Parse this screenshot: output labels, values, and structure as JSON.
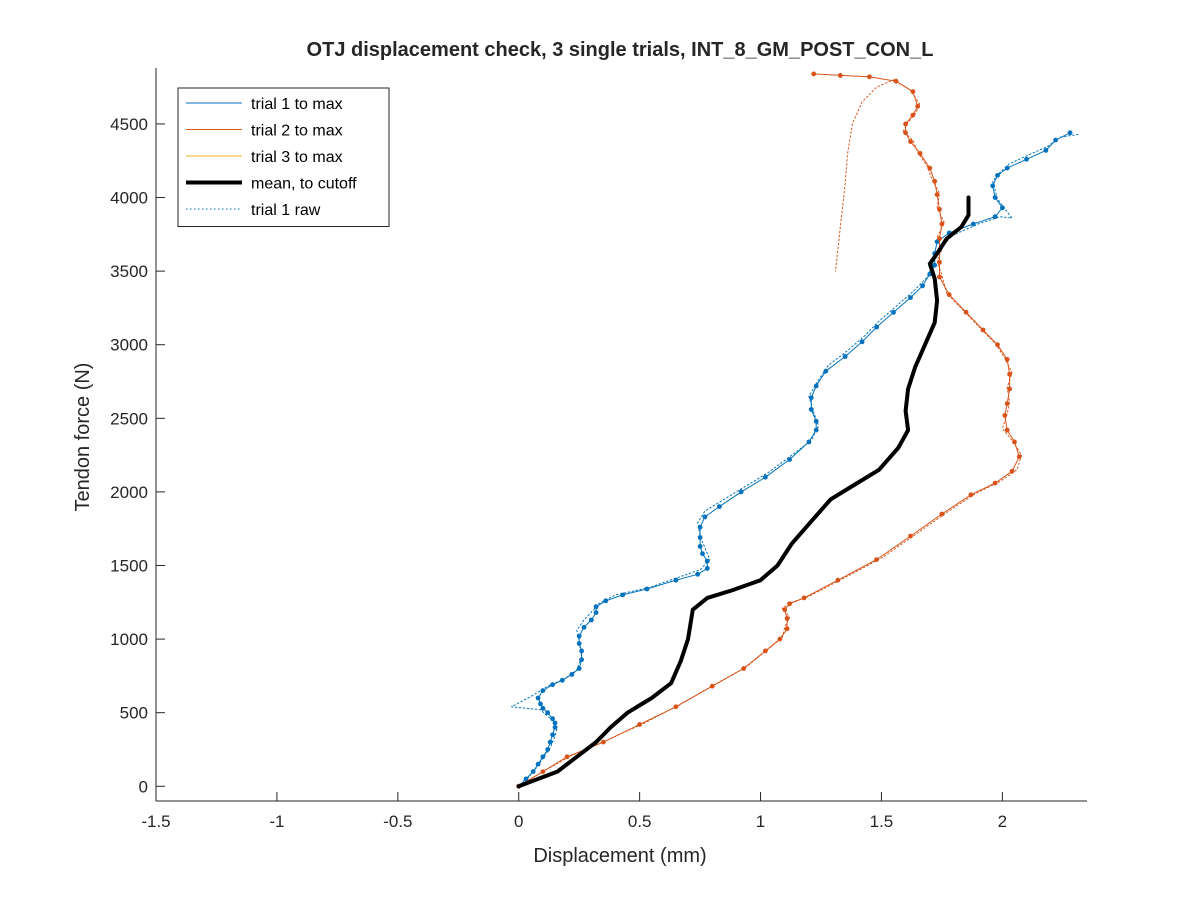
{
  "chart_data": {
    "type": "line",
    "title": "OTJ displacement check, 3 single trials, INT_8_GM_POST_CON_L",
    "xlabel": "Displacement (mm)",
    "ylabel": "Tendon force (N)",
    "xlim": [
      -1.5,
      2.35
    ],
    "ylim": [
      -100,
      4880
    ],
    "xticks": [
      -1.5,
      -1,
      -0.5,
      0,
      0.5,
      1,
      1.5,
      2
    ],
    "xtick_labels": [
      "-1.5",
      "-1",
      "-0.5",
      "0",
      "0.5",
      "1",
      "1.5",
      "2"
    ],
    "yticks": [
      0,
      500,
      1000,
      1500,
      2000,
      2500,
      3000,
      3500,
      4000,
      4500
    ],
    "ytick_labels": [
      "0",
      "500",
      "1000",
      "1500",
      "2000",
      "2500",
      "3000",
      "3500",
      "4000",
      "4500"
    ],
    "grid": false,
    "legend_position": "top-left",
    "colors": {
      "trial1": "#0072BD",
      "trial2": "#D95319",
      "trial3": "#EDB120",
      "mean": "#000000"
    },
    "series": [
      {
        "name": "trial 1 to max",
        "color": "#0072BD",
        "style": "solid-thin",
        "x": [
          0.0,
          0.03,
          0.06,
          0.08,
          0.1,
          0.12,
          0.13,
          0.14,
          0.15,
          0.15,
          0.14,
          0.12,
          0.1,
          0.09,
          0.08,
          0.1,
          0.14,
          0.18,
          0.22,
          0.25,
          0.26,
          0.26,
          0.25,
          0.25,
          0.27,
          0.3,
          0.32,
          0.32,
          0.36,
          0.43,
          0.53,
          0.65,
          0.74,
          0.78,
          0.78,
          0.76,
          0.75,
          0.75,
          0.75,
          0.77,
          0.83,
          0.92,
          1.02,
          1.12,
          1.2,
          1.23,
          1.23,
          1.21,
          1.21,
          1.23,
          1.27,
          1.35,
          1.42,
          1.48,
          1.55,
          1.62,
          1.67,
          1.7,
          1.72,
          1.72,
          1.73,
          1.78,
          1.88,
          1.97,
          2.0,
          1.97,
          1.96,
          1.98,
          2.02,
          2.1,
          2.18,
          2.22,
          2.28
        ],
        "y": [
          0,
          50,
          100,
          150,
          200,
          250,
          300,
          350,
          400,
          430,
          460,
          500,
          530,
          560,
          600,
          650,
          690,
          720,
          760,
          800,
          860,
          920,
          970,
          1020,
          1080,
          1130,
          1180,
          1220,
          1260,
          1300,
          1340,
          1400,
          1440,
          1480,
          1530,
          1580,
          1630,
          1690,
          1760,
          1830,
          1900,
          2000,
          2100,
          2220,
          2340,
          2420,
          2480,
          2560,
          2640,
          2720,
          2820,
          2920,
          3020,
          3120,
          3220,
          3320,
          3400,
          3480,
          3540,
          3620,
          3700,
          3760,
          3820,
          3870,
          3930,
          4000,
          4080,
          4150,
          4200,
          4260,
          4320,
          4390,
          4440
        ]
      },
      {
        "name": "trial 2 to max",
        "color": "#D95319",
        "style": "solid-thin",
        "x": [
          0.0,
          0.1,
          0.2,
          0.35,
          0.5,
          0.65,
          0.8,
          0.93,
          1.02,
          1.08,
          1.11,
          1.11,
          1.1,
          1.12,
          1.18,
          1.32,
          1.48,
          1.62,
          1.75,
          1.87,
          1.97,
          2.04,
          2.07,
          2.05,
          2.02,
          2.01,
          2.02,
          2.03,
          2.03,
          2.02,
          1.98,
          1.92,
          1.85,
          1.78,
          1.74,
          1.74,
          1.74,
          1.74,
          1.75,
          1.74,
          1.73,
          1.72,
          1.7,
          1.66,
          1.62,
          1.6,
          1.6,
          1.63,
          1.65,
          1.63,
          1.56,
          1.45,
          1.33,
          1.22
        ],
        "y": [
          0,
          100,
          200,
          300,
          420,
          540,
          680,
          800,
          920,
          1000,
          1070,
          1140,
          1200,
          1240,
          1280,
          1400,
          1540,
          1700,
          1850,
          1980,
          2060,
          2140,
          2240,
          2340,
          2420,
          2520,
          2600,
          2700,
          2800,
          2900,
          3000,
          3100,
          3220,
          3340,
          3460,
          3560,
          3640,
          3720,
          3820,
          3920,
          4020,
          4110,
          4200,
          4300,
          4380,
          4440,
          4500,
          4560,
          4620,
          4720,
          4790,
          4820,
          4830,
          4840
        ]
      },
      {
        "name": "trial 3 to max",
        "color": "#EDB120",
        "style": "solid-thin",
        "x": [],
        "y": []
      },
      {
        "name": "mean, to cutoff",
        "color": "#000000",
        "style": "solid-thick",
        "x": [
          0.0,
          0.08,
          0.16,
          0.24,
          0.32,
          0.38,
          0.45,
          0.55,
          0.63,
          0.67,
          0.7,
          0.71,
          0.72,
          0.78,
          0.88,
          1.0,
          1.07,
          1.13,
          1.21,
          1.29,
          1.39,
          1.49,
          1.57,
          1.61,
          1.6,
          1.61,
          1.64,
          1.68,
          1.72,
          1.73,
          1.72,
          1.7,
          1.73,
          1.77,
          1.83,
          1.86,
          1.86
        ],
        "y": [
          0,
          50,
          100,
          200,
          300,
          400,
          500,
          600,
          700,
          850,
          1000,
          1100,
          1200,
          1280,
          1330,
          1400,
          1500,
          1650,
          1800,
          1950,
          2050,
          2150,
          2300,
          2420,
          2550,
          2700,
          2850,
          3000,
          3150,
          3300,
          3450,
          3550,
          3620,
          3720,
          3800,
          3880,
          4000
        ]
      },
      {
        "name": "trial 1 raw",
        "color": "#0072BD",
        "style": "dotted",
        "x": [
          0.0,
          0.04,
          0.07,
          0.1,
          0.13,
          0.15,
          0.16,
          0.13,
          0.09,
          -0.03,
          0.05,
          0.12,
          0.19,
          0.24,
          0.26,
          0.25,
          0.24,
          0.27,
          0.31,
          0.33,
          0.4,
          0.54,
          0.66,
          0.75,
          0.79,
          0.77,
          0.75,
          0.74,
          0.77,
          0.84,
          0.93,
          1.03,
          1.13,
          1.21,
          1.24,
          1.22,
          1.2,
          1.24,
          1.28,
          1.36,
          1.43,
          1.49,
          1.56,
          1.63,
          1.69,
          1.71,
          1.74,
          1.79,
          1.9,
          1.99,
          2.04,
          1.98,
          1.96,
          1.99,
          2.03,
          2.11,
          2.19,
          2.24,
          2.32
        ],
        "y": [
          0,
          60,
          120,
          190,
          260,
          340,
          400,
          460,
          520,
          540,
          610,
          680,
          730,
          790,
          880,
          990,
          1060,
          1130,
          1200,
          1240,
          1300,
          1350,
          1420,
          1470,
          1540,
          1620,
          1700,
          1790,
          1870,
          1940,
          2030,
          2130,
          2250,
          2350,
          2450,
          2540,
          2650,
          2760,
          2860,
          2960,
          3060,
          3160,
          3260,
          3360,
          3460,
          3540,
          3640,
          3740,
          3820,
          3870,
          3860,
          3990,
          4110,
          4170,
          4230,
          4290,
          4350,
          4410,
          4430
        ]
      },
      {
        "name": "trial 2 raw",
        "color": "#D95319",
        "style": "dotted",
        "x": [
          0.0,
          0.11,
          0.22,
          0.36,
          0.52,
          0.66,
          0.81,
          0.94,
          1.03,
          1.09,
          1.1,
          1.12,
          1.09,
          1.13,
          1.2,
          1.34,
          1.5,
          1.64,
          1.77,
          1.89,
          1.99,
          2.06,
          2.08,
          2.04,
          2.0,
          2.02,
          2.03,
          2.02,
          2.04,
          2.01,
          1.97,
          1.91,
          1.84,
          1.77,
          1.75,
          1.73,
          1.75,
          1.73,
          1.76,
          1.73,
          1.74,
          1.71,
          1.69,
          1.65,
          1.63,
          1.59,
          1.61,
          1.64,
          1.66,
          1.62,
          1.55,
          1.48,
          1.42,
          1.38,
          1.36,
          1.35,
          1.34,
          1.33,
          1.32,
          1.31
        ],
        "y": [
          0,
          110,
          210,
          310,
          430,
          550,
          690,
          810,
          930,
          1010,
          1080,
          1150,
          1210,
          1250,
          1290,
          1410,
          1550,
          1710,
          1860,
          1990,
          2070,
          2150,
          2250,
          2350,
          2430,
          2530,
          2610,
          2710,
          2810,
          2910,
          3010,
          3110,
          3230,
          3350,
          3470,
          3570,
          3650,
          3730,
          3830,
          3930,
          4030,
          4120,
          4210,
          4310,
          4390,
          4450,
          4510,
          4570,
          4630,
          4730,
          4800,
          4750,
          4650,
          4500,
          4300,
          4100,
          3950,
          3800,
          3650,
          3500
        ]
      }
    ],
    "legend": [
      {
        "label": "trial 1 to max",
        "color": "#0072BD",
        "style": "solid-thin"
      },
      {
        "label": "trial 2 to max",
        "color": "#D95319",
        "style": "solid-thin"
      },
      {
        "label": "trial 3 to max",
        "color": "#EDB120",
        "style": "solid-thin"
      },
      {
        "label": "mean, to cutoff",
        "color": "#000000",
        "style": "solid-thick"
      },
      {
        "label": "trial 1 raw",
        "color": "#0072BD",
        "style": "dotted"
      }
    ]
  }
}
